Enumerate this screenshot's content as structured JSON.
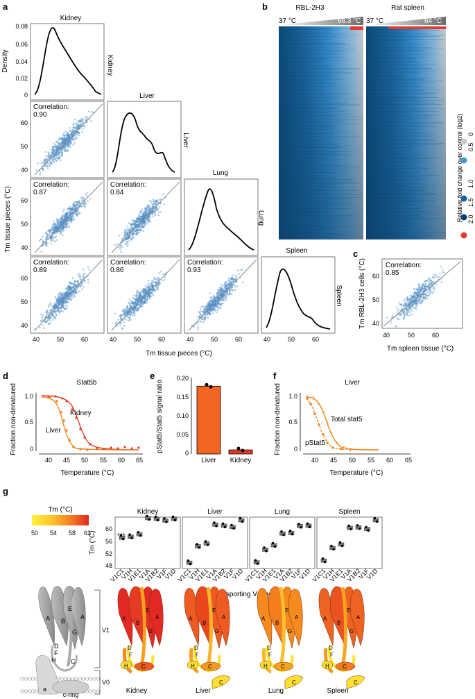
{
  "panels": {
    "a": {
      "label": "a",
      "tissues": [
        "Kidney",
        "Liver",
        "Lung",
        "Spleen"
      ],
      "density_ylabel": "Density",
      "density_ticks": [
        "0.08",
        "0.06",
        "0.04",
        "0.02",
        "0"
      ],
      "tm_ticks": [
        "60",
        "50",
        "40"
      ],
      "x_ticks": [
        "40",
        "50",
        "60"
      ],
      "correlation_label": "Correlation:",
      "correlations": [
        [
          "0.90"
        ],
        [
          "0.87",
          "0.84"
        ],
        [
          "0.89",
          "0.86",
          "0.93"
        ]
      ],
      "ylabel": "Tm tissue pieces (°C)",
      "xlabel": "Tm tissue pieces (°C)"
    },
    "b": {
      "label": "b",
      "titles": [
        "RBL-2H3",
        "Rat spleen"
      ],
      "temp_left": "37 °C",
      "temp_right_1": "66.3 °C",
      "temp_right_2": "64 °C",
      "legend_title": "Relative fold change over control  (log2)",
      "legend_ticks": [
        "2.0",
        "1.5",
        "1.0",
        "0.5",
        "0"
      ],
      "legend_colors": [
        "#e03c31",
        "#053f66",
        "#1c5f96",
        "#3f9ad3",
        "#c9c9c9"
      ]
    },
    "c": {
      "label": "c",
      "correlation_label": "Correlation:",
      "correlation": "0.85",
      "yticks": [
        "60",
        "50",
        "40"
      ],
      "xticks": [
        "40",
        "50",
        "60"
      ],
      "ylabel": "Tm RBL-2H3 cells (°C)",
      "xlabel": "Tm spleen tissue (°C)"
    },
    "d": {
      "label": "d",
      "title": "Stat5b",
      "ylabel": "Fraction non-denatured",
      "xlabel": "Temperature (°C)",
      "yticks": [
        "1.0",
        "0.5",
        "0"
      ],
      "xticks": [
        "40",
        "45",
        "50",
        "55",
        "60",
        "65"
      ],
      "curve_labels": [
        "Kidney",
        "Liver"
      ]
    },
    "e": {
      "label": "e",
      "ylabel": "pStat5/Stat5 signal ratio",
      "yticks": [
        "0.20",
        "0.15",
        "0.10",
        "0.05",
        "0"
      ],
      "chart_data": {
        "type": "bar",
        "categories": [
          "Liver",
          "Kidney"
        ],
        "values": [
          0.181,
          0.011
        ],
        "ylabel": "pStat5/Stat5 signal ratio",
        "ylim": [
          0,
          0.2
        ]
      }
    },
    "f": {
      "label": "f",
      "title": "Liver",
      "ylabel": "Fraction non-denatured",
      "xlabel": "Temperature (°C)",
      "yticks": [
        "1.0",
        "0.5",
        "0"
      ],
      "xticks": [
        "40",
        "45",
        "50",
        "55",
        "60",
        "65"
      ],
      "curve_labels": [
        "Total stat5",
        "pStat5"
      ]
    },
    "g": {
      "label": "g",
      "colorbar_title": "Tm (°C)",
      "colorbar_ticks": [
        "50",
        "54",
        "58",
        "62"
      ],
      "tissues": [
        "Kidney",
        "Liver",
        "Lung",
        "Spleen"
      ],
      "yticks": [
        "60",
        "56",
        "52",
        "48"
      ],
      "ylabel": "Tm (°C)",
      "subunits": [
        "V1C1",
        "V1H",
        "V1E1",
        "V1A",
        "V1B2",
        "V1F",
        "V1D"
      ],
      "significance": "***",
      "xlabel": "H+-transporting V-type ATPase",
      "structure_labels": {
        "v1": "V1",
        "v0": "V0",
        "a": "a",
        "c_ring": "c-ring",
        "subunit_letters": [
          "A",
          "B",
          "A",
          "E",
          "G",
          "F",
          "D",
          "H",
          "C",
          "C"
        ]
      }
    }
  }
}
